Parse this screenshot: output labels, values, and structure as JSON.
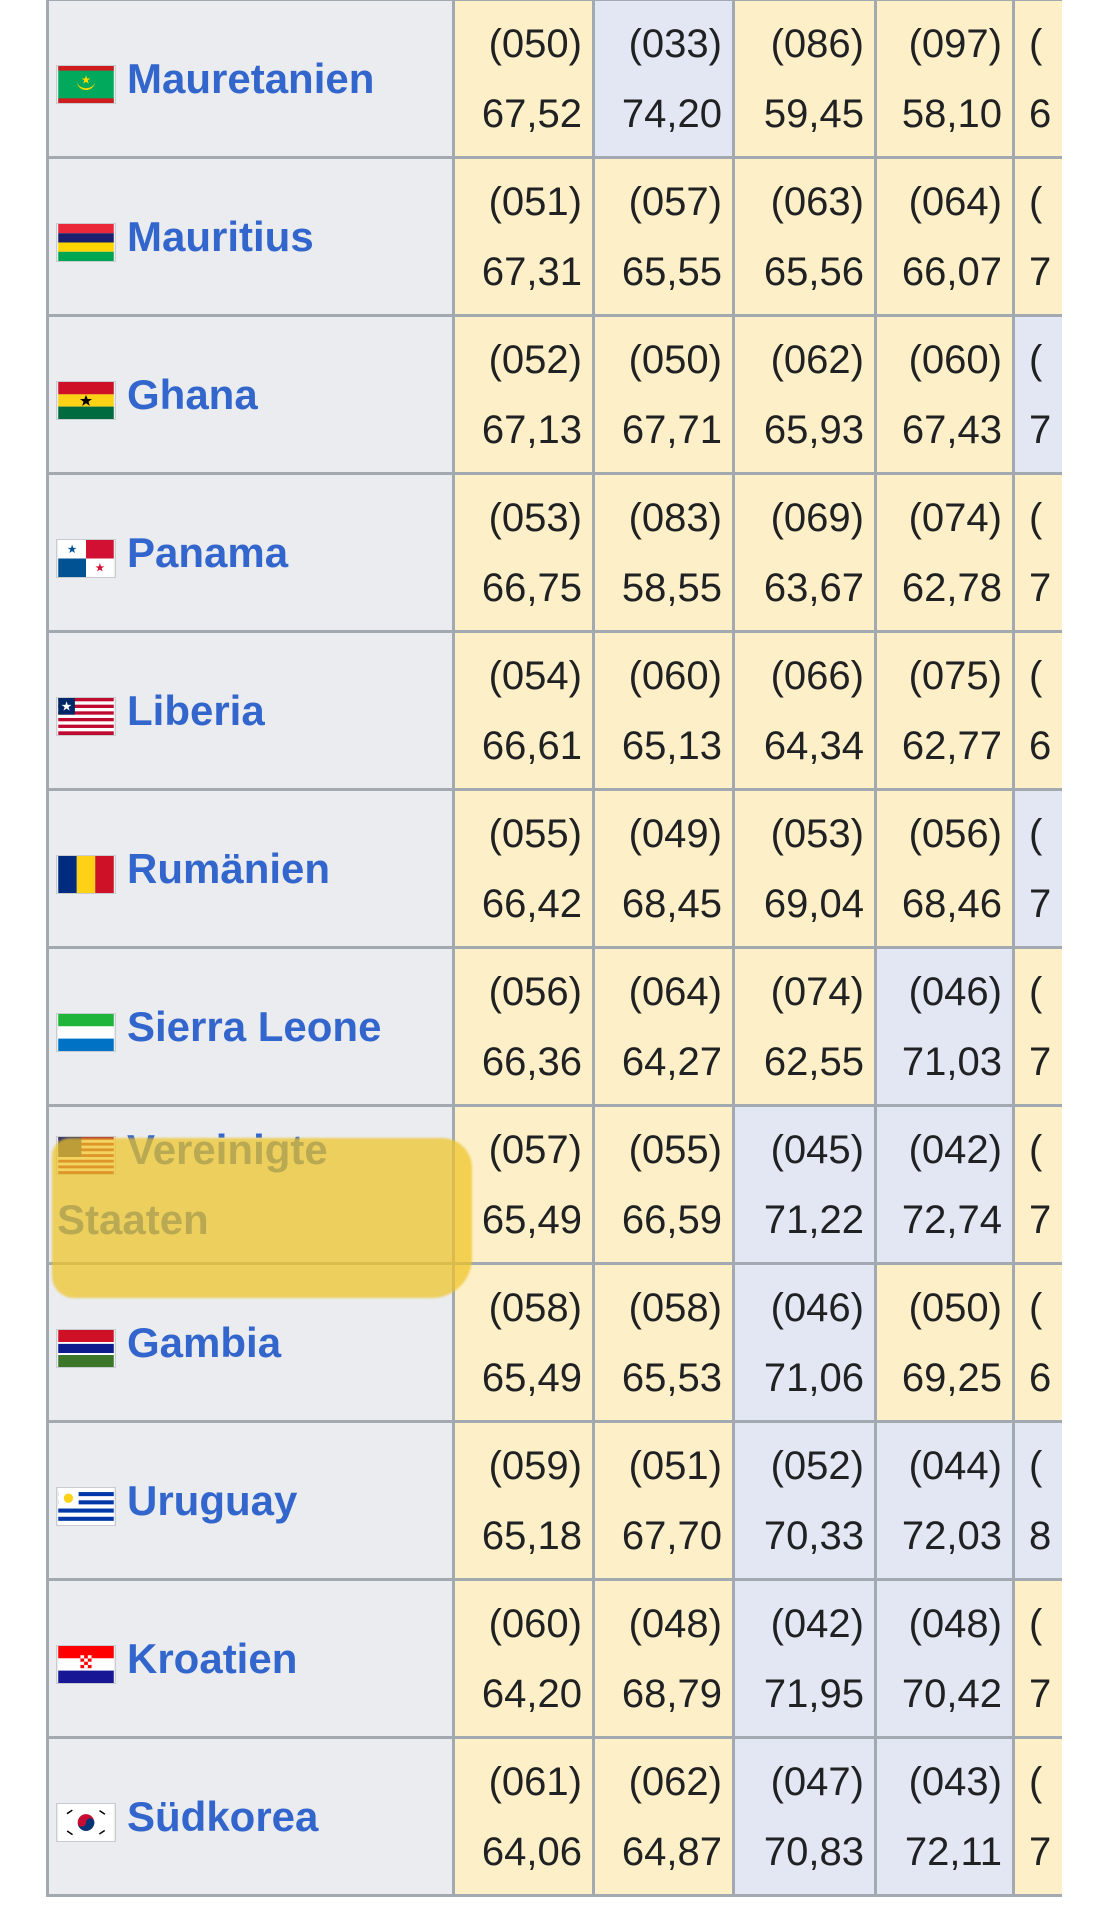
{
  "table": {
    "rows": [
      {
        "name": "Mauretanien",
        "flag": "mauritania-flag-icon",
        "cells": [
          {
            "rank": "(050)",
            "score": "67,52",
            "tone": "yellow"
          },
          {
            "rank": "(033)",
            "score": "74,20",
            "tone": "blue"
          },
          {
            "rank": "(086)",
            "score": "59,45",
            "tone": "yellow"
          },
          {
            "rank": "(097)",
            "score": "58,10",
            "tone": "yellow"
          },
          {
            "rank": "(",
            "score": "6",
            "tone": "yellow"
          }
        ]
      },
      {
        "name": "Mauritius",
        "flag": "mauritius-flag-icon",
        "cells": [
          {
            "rank": "(051)",
            "score": "67,31",
            "tone": "yellow"
          },
          {
            "rank": "(057)",
            "score": "65,55",
            "tone": "yellow"
          },
          {
            "rank": "(063)",
            "score": "65,56",
            "tone": "yellow"
          },
          {
            "rank": "(064)",
            "score": "66,07",
            "tone": "yellow"
          },
          {
            "rank": "(",
            "score": "7",
            "tone": "yellow"
          }
        ]
      },
      {
        "name": "Ghana",
        "flag": "ghana-flag-icon",
        "cells": [
          {
            "rank": "(052)",
            "score": "67,13",
            "tone": "yellow"
          },
          {
            "rank": "(050)",
            "score": "67,71",
            "tone": "yellow"
          },
          {
            "rank": "(062)",
            "score": "65,93",
            "tone": "yellow"
          },
          {
            "rank": "(060)",
            "score": "67,43",
            "tone": "yellow"
          },
          {
            "rank": "(",
            "score": "7",
            "tone": "blue"
          }
        ]
      },
      {
        "name": "Panama",
        "flag": "panama-flag-icon",
        "cells": [
          {
            "rank": "(053)",
            "score": "66,75",
            "tone": "yellow"
          },
          {
            "rank": "(083)",
            "score": "58,55",
            "tone": "yellow"
          },
          {
            "rank": "(069)",
            "score": "63,67",
            "tone": "yellow"
          },
          {
            "rank": "(074)",
            "score": "62,78",
            "tone": "yellow"
          },
          {
            "rank": "(",
            "score": "7",
            "tone": "yellow"
          }
        ]
      },
      {
        "name": "Liberia",
        "flag": "liberia-flag-icon",
        "cells": [
          {
            "rank": "(054)",
            "score": "66,61",
            "tone": "yellow"
          },
          {
            "rank": "(060)",
            "score": "65,13",
            "tone": "yellow"
          },
          {
            "rank": "(066)",
            "score": "64,34",
            "tone": "yellow"
          },
          {
            "rank": "(075)",
            "score": "62,77",
            "tone": "yellow"
          },
          {
            "rank": "(",
            "score": "6",
            "tone": "yellow"
          }
        ]
      },
      {
        "name": "Rumänien",
        "flag": "romania-flag-icon",
        "cells": [
          {
            "rank": "(055)",
            "score": "66,42",
            "tone": "yellow"
          },
          {
            "rank": "(049)",
            "score": "68,45",
            "tone": "yellow"
          },
          {
            "rank": "(053)",
            "score": "69,04",
            "tone": "yellow"
          },
          {
            "rank": "(056)",
            "score": "68,46",
            "tone": "yellow"
          },
          {
            "rank": "(",
            "score": "7",
            "tone": "blue"
          }
        ]
      },
      {
        "name": "Sierra Leone",
        "flag": "sierra-leone-flag-icon",
        "cells": [
          {
            "rank": "(056)",
            "score": "66,36",
            "tone": "yellow"
          },
          {
            "rank": "(064)",
            "score": "64,27",
            "tone": "yellow"
          },
          {
            "rank": "(074)",
            "score": "62,55",
            "tone": "yellow"
          },
          {
            "rank": "(046)",
            "score": "71,03",
            "tone": "blue"
          },
          {
            "rank": "(",
            "score": "7",
            "tone": "yellow"
          }
        ]
      },
      {
        "name": "Vereinigte Staaten",
        "flag": "usa-flag-icon",
        "cells": [
          {
            "rank": "(057)",
            "score": "65,49",
            "tone": "yellow"
          },
          {
            "rank": "(055)",
            "score": "66,59",
            "tone": "yellow"
          },
          {
            "rank": "(045)",
            "score": "71,22",
            "tone": "blue"
          },
          {
            "rank": "(042)",
            "score": "72,74",
            "tone": "blue"
          },
          {
            "rank": "(",
            "score": "7",
            "tone": "yellow"
          }
        ]
      },
      {
        "name": "Gambia",
        "flag": "gambia-flag-icon",
        "cells": [
          {
            "rank": "(058)",
            "score": "65,49",
            "tone": "yellow"
          },
          {
            "rank": "(058)",
            "score": "65,53",
            "tone": "yellow"
          },
          {
            "rank": "(046)",
            "score": "71,06",
            "tone": "blue"
          },
          {
            "rank": "(050)",
            "score": "69,25",
            "tone": "yellow"
          },
          {
            "rank": "(",
            "score": "6",
            "tone": "yellow"
          }
        ]
      },
      {
        "name": "Uruguay",
        "flag": "uruguay-flag-icon",
        "cells": [
          {
            "rank": "(059)",
            "score": "65,18",
            "tone": "yellow"
          },
          {
            "rank": "(051)",
            "score": "67,70",
            "tone": "yellow"
          },
          {
            "rank": "(052)",
            "score": "70,33",
            "tone": "blue"
          },
          {
            "rank": "(044)",
            "score": "72,03",
            "tone": "blue"
          },
          {
            "rank": "(",
            "score": "8",
            "tone": "blue"
          }
        ]
      },
      {
        "name": "Kroatien",
        "flag": "croatia-flag-icon",
        "cells": [
          {
            "rank": "(060)",
            "score": "64,20",
            "tone": "yellow"
          },
          {
            "rank": "(048)",
            "score": "68,79",
            "tone": "yellow"
          },
          {
            "rank": "(042)",
            "score": "71,95",
            "tone": "blue"
          },
          {
            "rank": "(048)",
            "score": "70,42",
            "tone": "blue"
          },
          {
            "rank": "(",
            "score": "7",
            "tone": "yellow"
          }
        ]
      },
      {
        "name": "Südkorea",
        "flag": "south-korea-flag-icon",
        "cells": [
          {
            "rank": "(061)",
            "score": "64,06",
            "tone": "yellow"
          },
          {
            "rank": "(062)",
            "score": "64,87",
            "tone": "yellow"
          },
          {
            "rank": "(047)",
            "score": "70,83",
            "tone": "blue"
          },
          {
            "rank": "(043)",
            "score": "72,11",
            "tone": "blue"
          },
          {
            "rank": "(",
            "score": "7",
            "tone": "yellow"
          }
        ]
      }
    ],
    "highlighted_row": "Vereinigte Staaten",
    "colors": {
      "link": "#3366cc",
      "header_cell": "#eaecf0",
      "yellow_cell": "#fdf0c8",
      "blue_cell": "#e3e6f3",
      "border": "#a2a9b1",
      "highlight": "#eec424"
    }
  }
}
